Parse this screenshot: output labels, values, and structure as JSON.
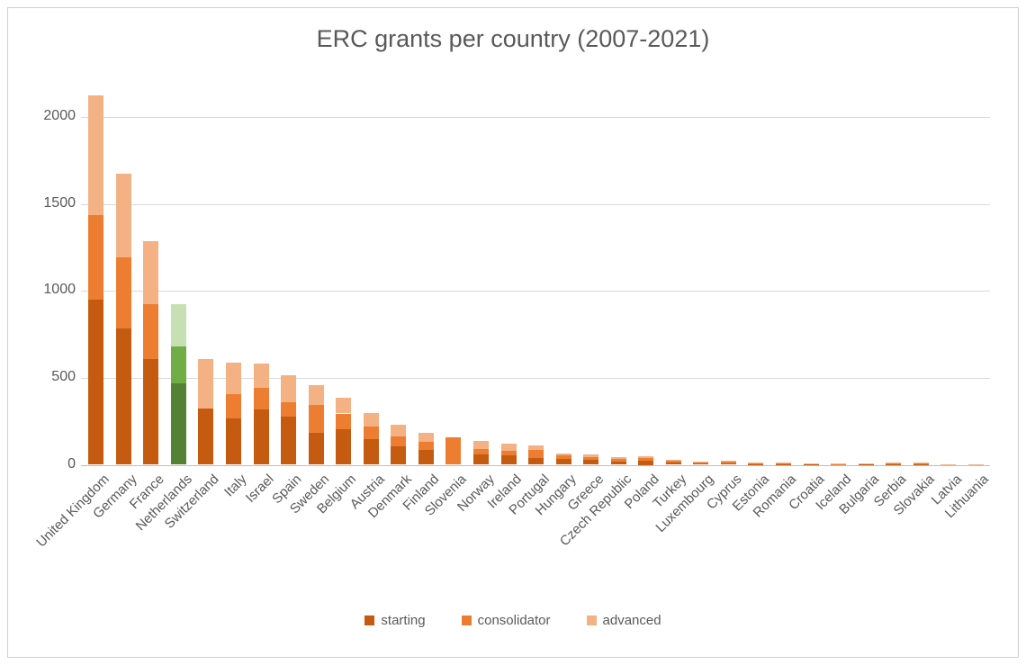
{
  "chart_data": {
    "type": "bar",
    "stacked": true,
    "title": "ERC grants per country (2007-2021)",
    "categories": [
      "United Kingdom",
      "Germany",
      "France",
      "Netherlands",
      "Switzerland",
      "Italy",
      "Israel",
      "Spain",
      "Sweden",
      "Belgium",
      "Austria",
      "Denmark",
      "Finland",
      "Slovenia",
      "Norway",
      "Ireland",
      "Portugal",
      "Hungary",
      "Greece",
      "Czech Republic",
      "Poland",
      "Turkey",
      "Luxembourg",
      "Cyprus",
      "Estonia",
      "Romania",
      "Croatia",
      "Iceland",
      "Bulgaria",
      "Serbia",
      "Slovakia",
      "Latvia",
      "Lithuania"
    ],
    "series": [
      {
        "name": "starting",
        "color": "#C55A11",
        "values": [
          950,
          785,
          610,
          470,
          325,
          265,
          320,
          275,
          185,
          205,
          145,
          105,
          85,
          0,
          60,
          52,
          40,
          35,
          28,
          20,
          22,
          12,
          8,
          9,
          5,
          5,
          3,
          2,
          3,
          4,
          5,
          1,
          1
        ]
      },
      {
        "name": "consolidator",
        "color": "#ED7D31",
        "values": [
          485,
          410,
          315,
          210,
          0,
          140,
          125,
          85,
          160,
          90,
          75,
          60,
          45,
          160,
          30,
          28,
          45,
          20,
          18,
          16,
          16,
          10,
          8,
          8,
          6,
          5,
          3,
          3,
          3,
          6,
          6,
          1,
          1
        ]
      },
      {
        "name": "advanced",
        "color": "#F4B183",
        "values": [
          690,
          480,
          360,
          245,
          285,
          185,
          135,
          155,
          115,
          90,
          80,
          65,
          55,
          0,
          45,
          40,
          25,
          10,
          11,
          9,
          9,
          6,
          4,
          4,
          4,
          3,
          2,
          2,
          2,
          2,
          2,
          1,
          1
        ]
      }
    ],
    "highlight": {
      "category": "Netherlands",
      "colors": {
        "starting": "#548235",
        "consolidator": "#70AD47",
        "advanced": "#C6E0B4"
      }
    },
    "yticks": [
      0,
      500,
      1000,
      1500,
      2000
    ],
    "ylim": [
      0,
      2000
    ],
    "grid": true,
    "legend_position": "bottom"
  },
  "styles": {
    "text_color": "#595959",
    "gridline_color": "#D9D9D9",
    "axis_line_color": "#BFBFBF",
    "border_color": "#D0D0D0",
    "background": "#FFFFFF"
  }
}
